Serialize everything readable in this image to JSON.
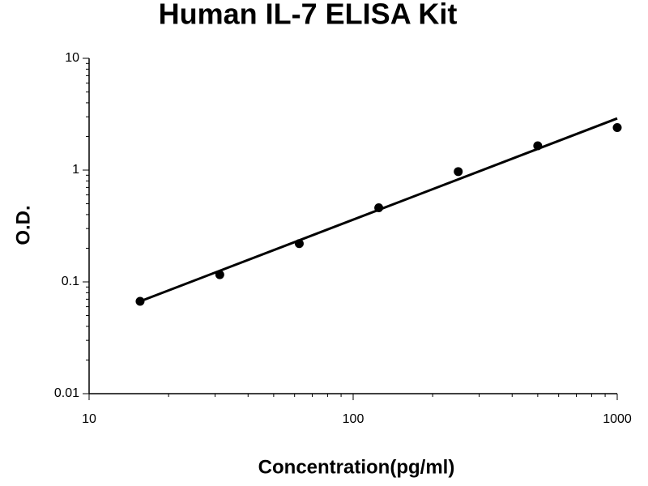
{
  "chart_data": {
    "type": "scatter",
    "title": "Human IL-7 ELISA Kit",
    "x_label": "Concentration(pg/ml)",
    "y_label": "O.D.",
    "x": [
      15.6,
      31.25,
      62.5,
      125,
      250,
      500,
      1000
    ],
    "values": [
      0.067,
      0.116,
      0.22,
      0.46,
      0.97,
      1.65,
      2.4
    ],
    "color": "#000000",
    "trendline": {
      "x": [
        15.6,
        1000
      ],
      "values": [
        0.067,
        2.9
      ]
    },
    "xlim": [
      10,
      1000
    ],
    "xticks": [
      10,
      100,
      1000
    ],
    "ylim": [
      0.01,
      10
    ],
    "yticks": [
      0.01,
      0.1,
      1,
      10
    ],
    "xscale": "log",
    "yscale": "log",
    "grid": false
  }
}
